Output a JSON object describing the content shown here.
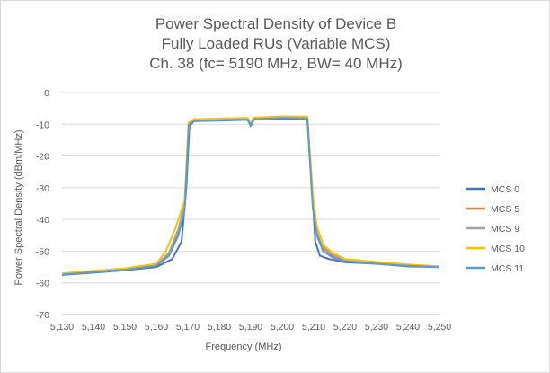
{
  "chart_data": {
    "type": "line",
    "title_lines": [
      "Power Spectral Density of Device B",
      "Fully Loaded RUs (Variable MCS)",
      "Ch. 38 (fc= 5190 MHz, BW= 40 MHz)"
    ],
    "xlabel": "Frequency (MHz)",
    "ylabel": "Power Spectral Density (dBm/MHz)",
    "xlim": [
      5130,
      5250
    ],
    "ylim": [
      -70,
      0
    ],
    "x_ticks": [
      5130,
      5140,
      5150,
      5160,
      5170,
      5180,
      5190,
      5200,
      5210,
      5220,
      5230,
      5240,
      5250
    ],
    "x_tick_labels": [
      "5,130",
      "5,140",
      "5,150",
      "5,160",
      "5,170",
      "5,180",
      "5,190",
      "5,200",
      "5,210",
      "5,220",
      "5,230",
      "5,240",
      "5,250"
    ],
    "y_ticks": [
      0,
      -10,
      -20,
      -30,
      -40,
      -50,
      -60,
      -70
    ],
    "y_tick_labels": [
      "0",
      "-10",
      "-20",
      "-30",
      "-40",
      "-50",
      "-60",
      "-70"
    ],
    "grid": true,
    "legend_position": "right",
    "series": [
      {
        "name": "MCS 0",
        "color": "#4472C4",
        "x": [
          5130,
          5140,
          5150,
          5160,
          5165,
          5168,
          5169.5,
          5170.5,
          5172,
          5180,
          5189,
          5190,
          5191,
          5200,
          5208,
          5209.5,
          5210.5,
          5212,
          5215,
          5220,
          5230,
          5240,
          5250
        ],
        "y": [
          -57.5,
          -56.8,
          -56,
          -55,
          -52.5,
          -47,
          -30,
          -10.5,
          -9,
          -8.8,
          -8.6,
          -10.5,
          -8.5,
          -8.2,
          -8.5,
          -30,
          -47,
          -51.5,
          -52.5,
          -53.5,
          -54,
          -54.8,
          -55
        ]
      },
      {
        "name": "MCS 5",
        "color": "#ED7D31",
        "x": [
          5130,
          5140,
          5150,
          5160,
          5164,
          5167,
          5169,
          5170.3,
          5172,
          5180,
          5189,
          5190,
          5191,
          5200,
          5208,
          5209.7,
          5211,
          5213,
          5216,
          5220,
          5230,
          5240,
          5250
        ],
        "y": [
          -57.3,
          -56.5,
          -55.8,
          -54.5,
          -51,
          -44,
          -36,
          -10,
          -8.8,
          -8.5,
          -8.3,
          -10,
          -8.2,
          -7.8,
          -8,
          -35,
          -44,
          -49,
          -51.5,
          -53,
          -53.8,
          -54.5,
          -55
        ]
      },
      {
        "name": "MCS 9",
        "color": "#A5A5A5",
        "x": [
          5130,
          5140,
          5150,
          5160,
          5164,
          5167,
          5169,
          5170.3,
          5172,
          5180,
          5189,
          5190,
          5191,
          5200,
          5208,
          5209.7,
          5211,
          5213,
          5216,
          5220,
          5230,
          5240,
          5250
        ],
        "y": [
          -57.2,
          -56.4,
          -55.6,
          -54.3,
          -50.5,
          -43,
          -35,
          -9.8,
          -8.6,
          -8.4,
          -8.2,
          -9.8,
          -8.1,
          -7.7,
          -7.9,
          -34,
          -43,
          -48.5,
          -51,
          -52.8,
          -53.6,
          -54.3,
          -54.8
        ]
      },
      {
        "name": "MCS 10",
        "color": "#FFC000",
        "x": [
          5130,
          5140,
          5150,
          5160,
          5163,
          5166,
          5169,
          5170.2,
          5172,
          5180,
          5189,
          5190,
          5191,
          5200,
          5208,
          5209.8,
          5211,
          5213,
          5216,
          5220,
          5230,
          5240,
          5250
        ],
        "y": [
          -57,
          -56.2,
          -55.4,
          -54,
          -50,
          -43,
          -34,
          -9.5,
          -8.4,
          -8.2,
          -8,
          -9.7,
          -7.9,
          -7.5,
          -7.6,
          -33,
          -42,
          -48,
          -50.5,
          -52.5,
          -53.4,
          -54.2,
          -54.8
        ]
      },
      {
        "name": "MCS 11",
        "color": "#5B9BD5",
        "x": [
          5130,
          5140,
          5150,
          5160,
          5164,
          5167,
          5169,
          5170.3,
          5172,
          5180,
          5189,
          5190,
          5191,
          5200,
          5208,
          5209.7,
          5211,
          5213,
          5216,
          5220,
          5230,
          5240,
          5250
        ],
        "y": [
          -57.4,
          -56.6,
          -55.9,
          -54.6,
          -51.5,
          -45,
          -37,
          -10.2,
          -9,
          -8.7,
          -8.5,
          -10.3,
          -8.4,
          -8,
          -8.2,
          -36,
          -45,
          -50,
          -52,
          -53.2,
          -54,
          -54.6,
          -55.1
        ]
      }
    ]
  }
}
